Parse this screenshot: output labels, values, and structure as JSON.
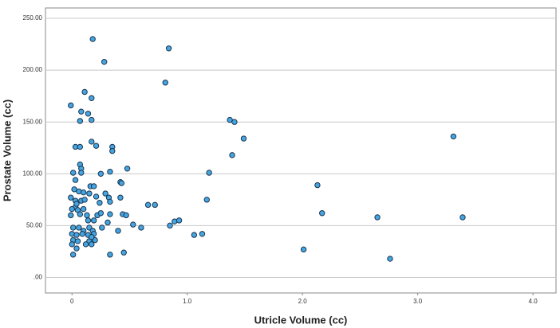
{
  "chart_data": {
    "type": "scatter",
    "x_label": "Utricle Volume (cc)",
    "y_label": "Prostate Volume (cc)",
    "color": "#45a5e0",
    "xlim": [
      -0.23,
      4.2
    ],
    "ylim": [
      -15,
      260
    ],
    "xticks": [
      0,
      {
        "value": 1,
        "label": "1.0"
      },
      {
        "value": 2,
        "label": "2.0"
      },
      {
        "value": 3,
        "label": "3.0"
      },
      {
        "value": 4,
        "label": "4.0"
      }
    ],
    "yticks": [
      {
        "value": 0,
        "label": ".00"
      },
      {
        "value": 50,
        "label": "50.00"
      },
      {
        "value": 100,
        "label": "100.00"
      },
      {
        "value": 150,
        "label": "150.00"
      },
      {
        "value": 200,
        "label": "200.00"
      },
      {
        "value": 250,
        "label": "250.00"
      }
    ],
    "grid": true,
    "x": [
      -0.01,
      0.18,
      0.28,
      0.84,
      0.81,
      0.11,
      0.17,
      0.08,
      0.14,
      0.07,
      0.17,
      0.17,
      0.21,
      0.35,
      0.35,
      0.03,
      0.07,
      0.07,
      0.08,
      0.08,
      0.48,
      0.33,
      0.25,
      0.01,
      0.03,
      0.42,
      0.43,
      0.16,
      0.19,
      0.02,
      0.06,
      0.1,
      0.15,
      0.21,
      0.29,
      0.32,
      0.42,
      -0.01,
      0.03,
      0.08,
      0.11,
      0.24,
      0.33,
      0.66,
      0.72,
      1.17,
      1.19,
      1.39,
      1.37,
      1.41,
      1.49,
      2.13,
      2.17,
      2.65,
      3.31,
      3.39,
      2.01,
      2.76,
      0.03,
      0.0,
      0.05,
      -0.01,
      0.07,
      0.13,
      0.22,
      0.25,
      0.33,
      0.44,
      0.47,
      0.14,
      0.19,
      0.31,
      0.53,
      0.6,
      0.85,
      0.89,
      0.93,
      0.01,
      0.06,
      0.1,
      0.15,
      0.18,
      0.26,
      0.4,
      0.0,
      0.04,
      0.09,
      0.14,
      0.19,
      1.06,
      1.13,
      0.01,
      0.05,
      0.15,
      0.2,
      0.17,
      0.0,
      0.12,
      0.04,
      0.17,
      0.01,
      0.33,
      0.45,
      0.1,
      0.04
    ],
    "values": [
      166,
      230,
      208,
      221,
      188,
      179,
      173,
      160,
      158,
      151,
      152,
      131,
      127,
      126,
      122,
      126,
      126,
      109,
      105,
      101,
      105,
      102,
      100,
      101,
      94,
      92,
      91,
      88,
      88,
      85,
      83,
      82,
      81,
      78,
      81,
      77,
      77,
      77,
      74,
      74,
      75,
      72,
      73,
      70,
      70,
      75,
      101,
      118,
      152,
      150,
      134,
      89,
      62,
      58,
      136,
      58,
      27,
      18,
      68,
      66,
      65,
      60,
      61,
      60,
      60,
      62,
      61,
      61,
      60,
      55,
      55,
      53,
      51,
      48,
      50,
      54,
      55,
      48,
      48,
      45,
      48,
      45,
      48,
      45,
      42,
      41,
      42,
      41,
      42,
      41,
      42,
      36,
      35,
      35,
      36,
      39,
      32,
      32,
      28,
      32,
      22,
      22,
      24,
      66,
      71
    ]
  }
}
